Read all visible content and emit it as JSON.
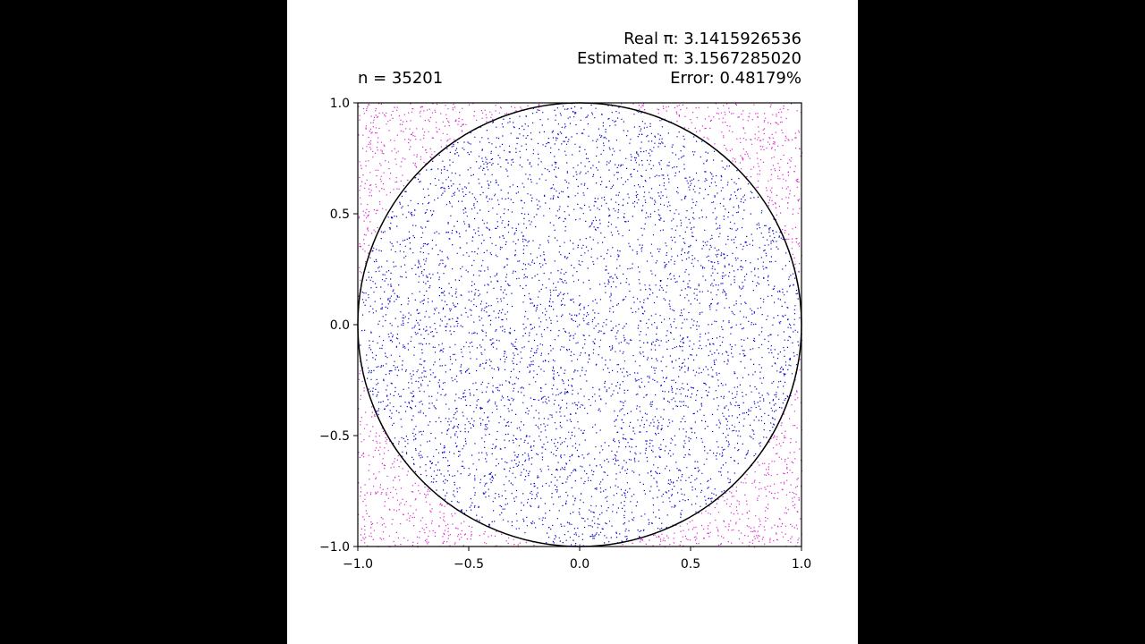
{
  "header": {
    "n_label": "n = 35201",
    "real_pi": "Real π: 3.1415926536",
    "estimated_pi": "Estimated π: 3.1567285020",
    "error": "Error: 0.48179%"
  },
  "chart_data": {
    "type": "scatter",
    "title": "",
    "xlabel": "",
    "ylabel": "",
    "xlim": [
      -1.0,
      1.0
    ],
    "ylim": [
      -1.0,
      1.0
    ],
    "x_ticks": [
      "−1.0",
      "−0.5",
      "0.0",
      "0.5",
      "1.0"
    ],
    "y_ticks": [
      "−1.0",
      "−0.5",
      "0.0",
      "0.5",
      "1.0"
    ],
    "x_tick_values": [
      -1.0,
      -0.5,
      0.0,
      0.5,
      1.0
    ],
    "y_tick_values": [
      -1.0,
      -0.5,
      0.0,
      0.5,
      1.0
    ],
    "grid": false,
    "n_points": 35201,
    "circle": {
      "center": [
        0,
        0
      ],
      "radius": 1.0,
      "color": "#000000"
    },
    "series": [
      {
        "region": "inside-circle",
        "color": "#0000cc"
      },
      {
        "region": "outside-circle",
        "color": "#dd22cc"
      }
    ]
  }
}
